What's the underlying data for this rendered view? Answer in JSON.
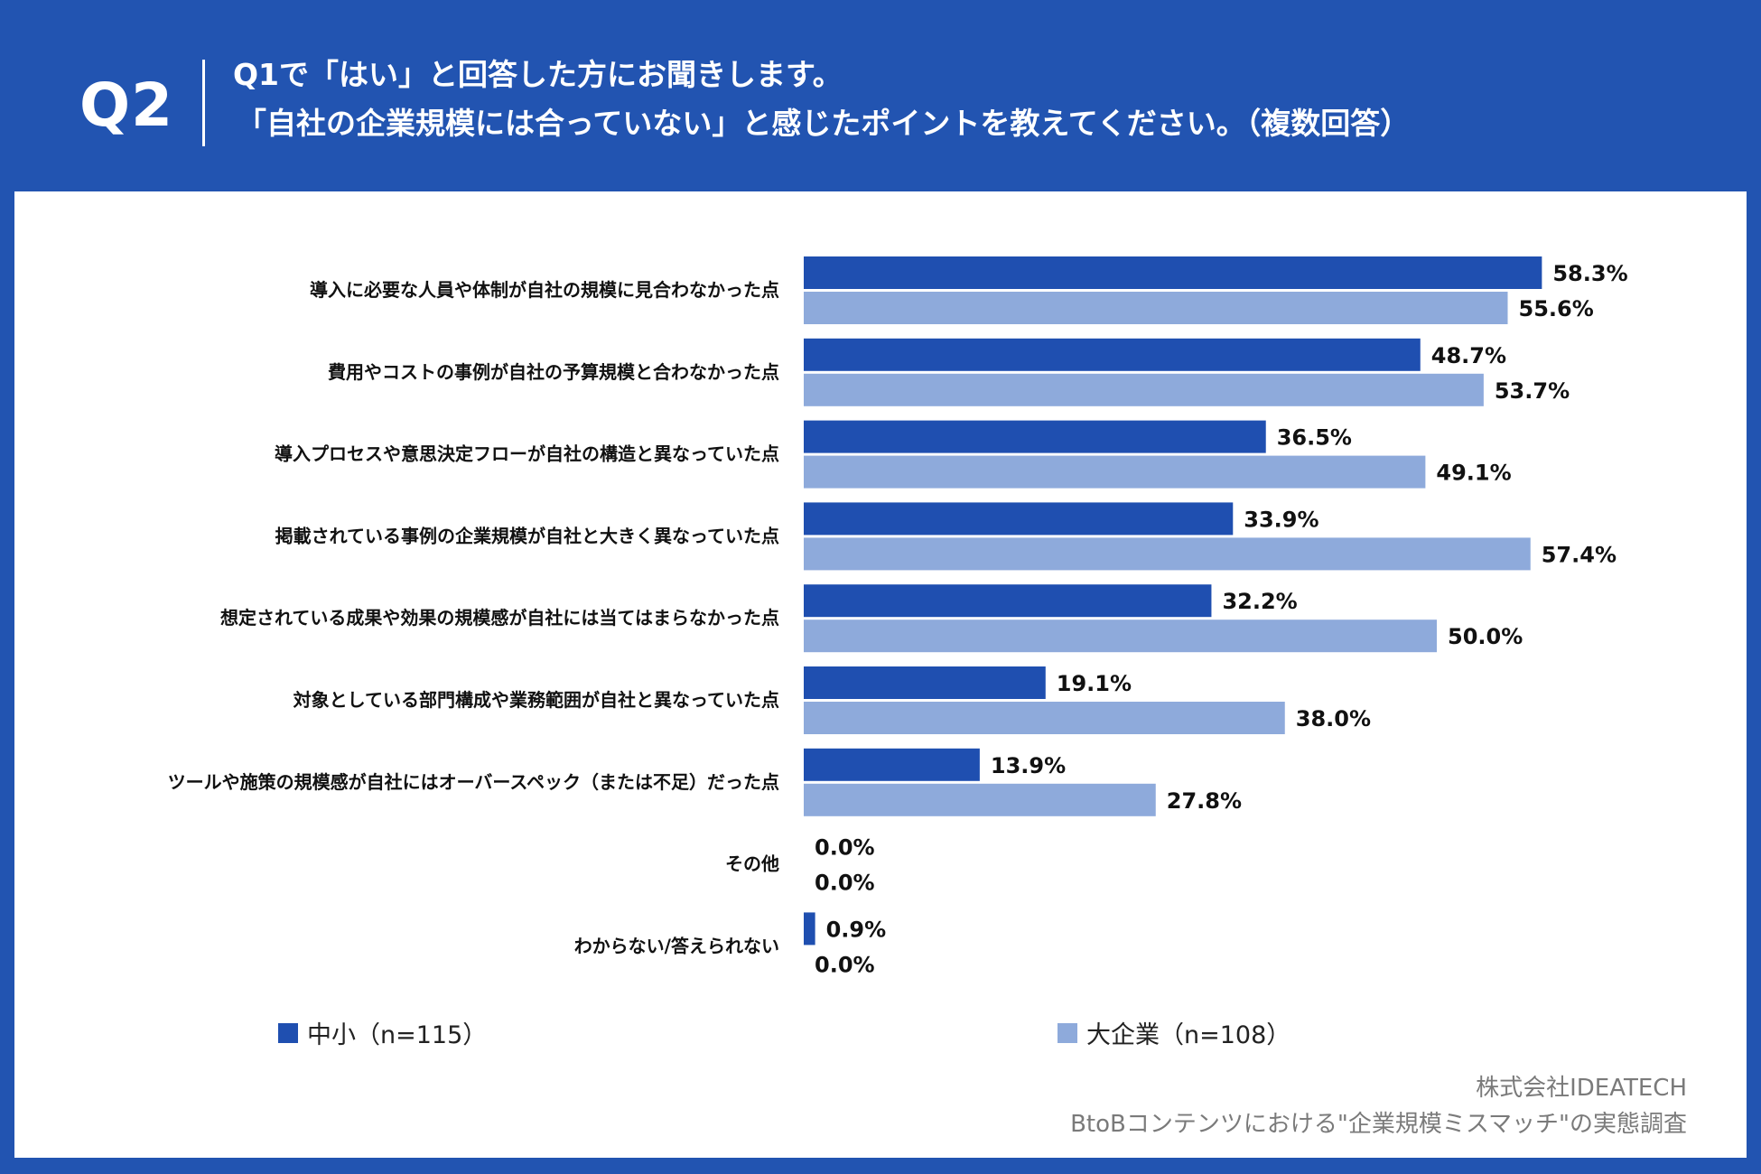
{
  "header": {
    "q_label": "Q2",
    "title_line1": "Q1で「はい」と回答した方にお聞きします。",
    "title_line2": "「自社の企業規模には合っていない」と感じたポイントを教えてください。（複数回答）"
  },
  "colors": {
    "background": "#2254b1",
    "series_sme": "#1f4fb0",
    "series_large": "#8eaadb"
  },
  "chart_data": {
    "type": "bar",
    "orientation": "horizontal",
    "categories": [
      "導入に必要な人員や体制が自社の規模に見合わなかった点",
      "費用やコストの事例が自社の予算規模と合わなかった点",
      "導入プロセスや意思決定フローが自社の構造と異なっていた点",
      "掲載されている事例の企業規模が自社と大きく異なっていた点",
      "想定されている成果や効果の規模感が自社には当てはまらなかった点",
      "対象としている部門構成や業務範囲が自社と異なっていた点",
      "ツールや施策の規模感が自社にはオーバースペック（または不足）だった点",
      "その他",
      "わからない/答えられない"
    ],
    "series": [
      {
        "name": "中小（n=115）",
        "values": [
          58.3,
          48.7,
          36.5,
          33.9,
          32.2,
          19.1,
          13.9,
          0.0,
          0.9
        ],
        "labels": [
          "58.3%",
          "48.7%",
          "36.5%",
          "33.9%",
          "32.2%",
          "19.1%",
          "13.9%",
          "0.0%",
          "0.9%"
        ]
      },
      {
        "name": "大企業（n=108）",
        "values": [
          55.6,
          53.7,
          49.1,
          57.4,
          50.0,
          38.0,
          27.8,
          0.0,
          0.0
        ],
        "labels": [
          "55.6%",
          "53.7%",
          "49.1%",
          "57.4%",
          "50.0%",
          "38.0%",
          "27.8%",
          "0.0%",
          "0.0%"
        ]
      }
    ],
    "unit": "%",
    "legend_position": "bottom",
    "grid": false
  },
  "legend": {
    "sme": "中小（n=115）",
    "large": "大企業（n=108）"
  },
  "footer": {
    "company": "株式会社IDEATECH",
    "survey": "BtoBコンテンツにおける\"企業規模ミスマッチ\"の実態調査"
  }
}
